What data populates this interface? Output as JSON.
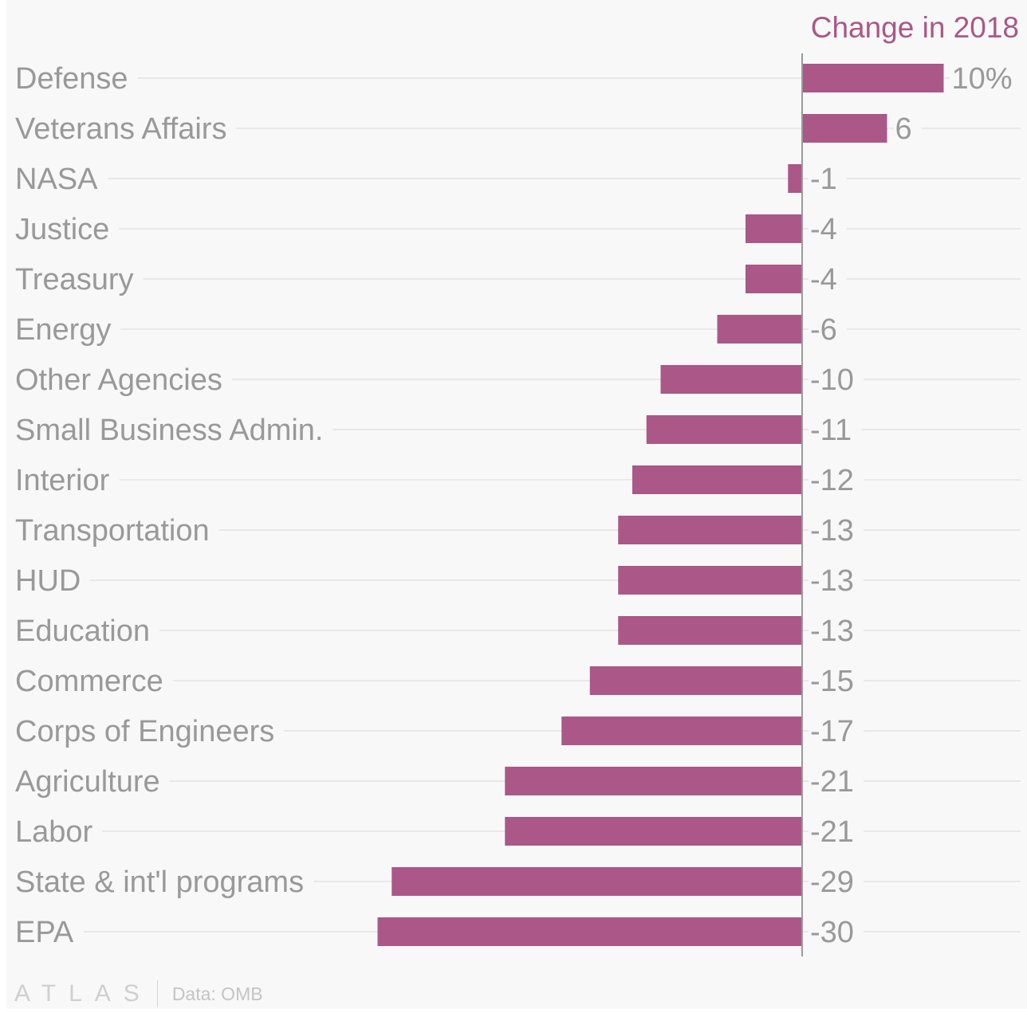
{
  "chart_data": {
    "type": "bar",
    "orientation": "horizontal",
    "title": "Change in 2018",
    "categories": [
      "Defense",
      "Veterans Affairs",
      "NASA",
      "Justice",
      "Treasury",
      "Energy",
      "Other Agencies",
      "Small Business Admin.",
      "Interior",
      "Transportation",
      "HUD",
      "Education",
      "Commerce",
      "Corps of Engineers",
      "Agriculture",
      "Labor",
      "State & int'l programs",
      "EPA"
    ],
    "values": [
      10,
      6,
      -1,
      -4,
      -4,
      -6,
      -10,
      -11,
      -12,
      -13,
      -13,
      -13,
      -15,
      -17,
      -21,
      -21,
      -29,
      -30
    ],
    "value_labels": [
      "10%",
      "6",
      "-1",
      "-4",
      "-4",
      "-6",
      "-10",
      "-11",
      "-12",
      "-13",
      "-13",
      "-13",
      "-15",
      "-17",
      "-21",
      "-21",
      "-29",
      "-30"
    ],
    "unit": "%",
    "xlim": [
      -30,
      10
    ],
    "grid": true,
    "colors": {
      "bar": "#ab5787",
      "title": "#ab5787",
      "label": "#999999",
      "grid": "#e8e8e8",
      "axis": "#9a9a9a"
    }
  },
  "footer": {
    "logo": "ATLAS",
    "source": "Data: OMB"
  }
}
